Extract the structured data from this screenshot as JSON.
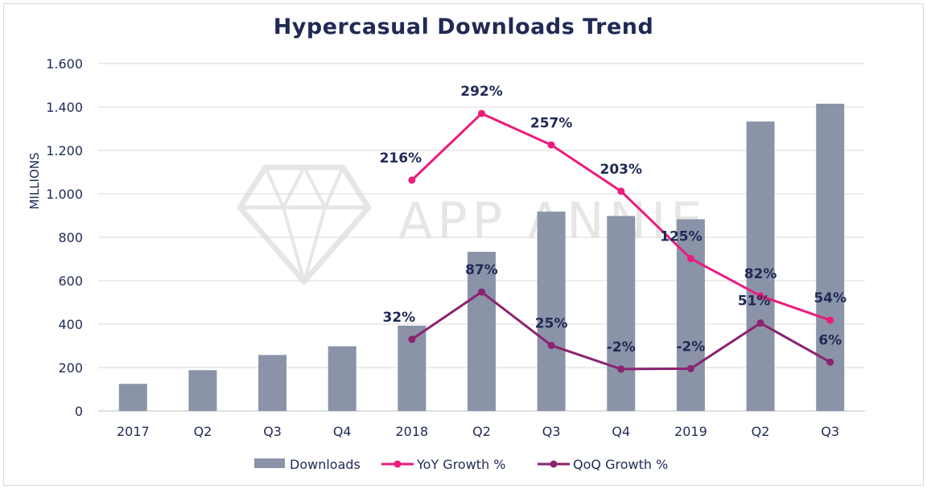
{
  "chart_data": {
    "type": "bar",
    "title": "Hypercasual Downloads Trend",
    "ylabel": "MILLIONS",
    "xlabel": "",
    "ylim": [
      0,
      1600
    ],
    "yticks": [
      0,
      200,
      400,
      600,
      800,
      1000,
      1200,
      1400,
      1600
    ],
    "ytick_labels": [
      "0",
      "200",
      "400",
      "600",
      "800",
      "1.000",
      "1.200",
      "1.400",
      "1.600"
    ],
    "categories": [
      "2017",
      "Q2",
      "Q3",
      "Q4",
      "2018",
      "Q2",
      "Q3",
      "Q4",
      "2019",
      "Q2",
      "Q3"
    ],
    "grid": true,
    "legend_position": "bottom",
    "watermark": "APP ANNIE",
    "series": [
      {
        "name": "Downloads",
        "kind": "bar",
        "color": "#8a93a8",
        "values": [
          125,
          188,
          258,
          298,
          393,
          733,
          918,
          898,
          883,
          1333,
          1415
        ]
      },
      {
        "name": "YoY Growth %",
        "kind": "line",
        "color": "#ec1c7c",
        "values": [
          null,
          null,
          null,
          null,
          1063,
          1370,
          1225,
          1012,
          702,
          530,
          418
        ],
        "labels": [
          null,
          null,
          null,
          null,
          "216%",
          "292%",
          "257%",
          "203%",
          "125%",
          "82%",
          "54%"
        ]
      },
      {
        "name": "QoQ Growth %",
        "kind": "line",
        "color": "#8b2371",
        "values": [
          null,
          null,
          null,
          null,
          330,
          548,
          302,
          193,
          195,
          405,
          225
        ],
        "labels": [
          null,
          null,
          null,
          null,
          "32%",
          "87%",
          "25%",
          "-2%",
          "-2%",
          "51%",
          "6%"
        ]
      }
    ]
  }
}
